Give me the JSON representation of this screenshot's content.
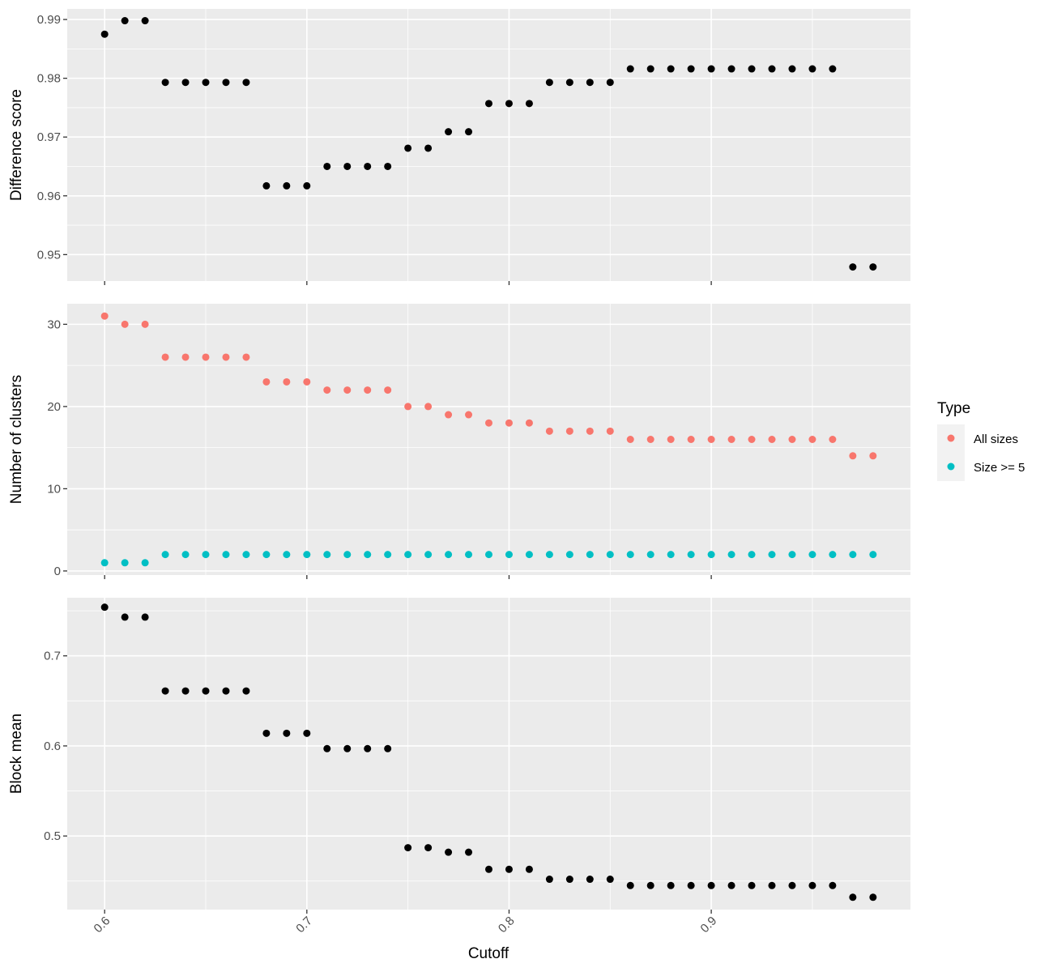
{
  "chart_data": [
    {
      "type": "scatter",
      "panel": "top",
      "ylabel": "Difference score",
      "xlim": [
        0.5815,
        0.9985
      ],
      "ylim": [
        0.9455,
        0.9918
      ],
      "y_ticks": [
        0.95,
        0.96,
        0.97,
        0.98,
        0.99
      ],
      "y_tick_labels": [
        "0.95",
        "0.96",
        "0.97",
        "0.98",
        "0.99"
      ],
      "show_x_tick_labels": false,
      "grid": true,
      "series": [
        {
          "color": "#000000",
          "x": [
            0.6,
            0.61,
            0.62,
            0.63,
            0.64,
            0.65,
            0.66,
            0.67,
            0.68,
            0.69,
            0.7,
            0.71,
            0.72,
            0.73,
            0.74,
            0.75,
            0.76,
            0.77,
            0.78,
            0.79,
            0.8,
            0.81,
            0.82,
            0.83,
            0.84,
            0.85,
            0.86,
            0.87,
            0.88,
            0.89,
            0.9,
            0.91,
            0.92,
            0.93,
            0.94,
            0.95,
            0.96,
            0.97,
            0.98
          ],
          "y": [
            0.9875,
            0.9898,
            0.9898,
            0.9793,
            0.9793,
            0.9793,
            0.9793,
            0.9793,
            0.9617,
            0.9617,
            0.9617,
            0.965,
            0.965,
            0.965,
            0.965,
            0.9681,
            0.9681,
            0.9709,
            0.9709,
            0.9757,
            0.9757,
            0.9757,
            0.9793,
            0.9793,
            0.9793,
            0.9793,
            0.9816,
            0.9816,
            0.9816,
            0.9816,
            0.9816,
            0.9816,
            0.9816,
            0.9816,
            0.9816,
            0.9816,
            0.9816,
            0.9479,
            0.9479
          ]
        }
      ]
    },
    {
      "type": "scatter",
      "panel": "middle",
      "ylabel": "Number of clusters",
      "xlim": [
        0.5815,
        0.9985
      ],
      "ylim": [
        -0.5,
        32.5
      ],
      "y_ticks": [
        0,
        10,
        20,
        30
      ],
      "y_tick_labels": [
        "0",
        "10",
        "20",
        "30"
      ],
      "show_x_tick_labels": false,
      "grid": true,
      "series": [
        {
          "name": "All sizes",
          "color": "#F8766D",
          "x": [
            0.6,
            0.61,
            0.62,
            0.63,
            0.64,
            0.65,
            0.66,
            0.67,
            0.68,
            0.69,
            0.7,
            0.71,
            0.72,
            0.73,
            0.74,
            0.75,
            0.76,
            0.77,
            0.78,
            0.79,
            0.8,
            0.81,
            0.82,
            0.83,
            0.84,
            0.85,
            0.86,
            0.87,
            0.88,
            0.89,
            0.9,
            0.91,
            0.92,
            0.93,
            0.94,
            0.95,
            0.96,
            0.97,
            0.98
          ],
          "y": [
            31,
            30,
            30,
            26,
            26,
            26,
            26,
            26,
            23,
            23,
            23,
            22,
            22,
            22,
            22,
            20,
            20,
            19,
            19,
            18,
            18,
            18,
            17,
            17,
            17,
            17,
            16,
            16,
            16,
            16,
            16,
            16,
            16,
            16,
            16,
            16,
            16,
            14,
            14
          ]
        },
        {
          "name": "Size >= 5",
          "color": "#00BFC4",
          "x": [
            0.6,
            0.61,
            0.62,
            0.63,
            0.64,
            0.65,
            0.66,
            0.67,
            0.68,
            0.69,
            0.7,
            0.71,
            0.72,
            0.73,
            0.74,
            0.75,
            0.76,
            0.77,
            0.78,
            0.79,
            0.8,
            0.81,
            0.82,
            0.83,
            0.84,
            0.85,
            0.86,
            0.87,
            0.88,
            0.89,
            0.9,
            0.91,
            0.92,
            0.93,
            0.94,
            0.95,
            0.96,
            0.97,
            0.98
          ],
          "y": [
            1,
            1,
            1,
            2,
            2,
            2,
            2,
            2,
            2,
            2,
            2,
            2,
            2,
            2,
            2,
            2,
            2,
            2,
            2,
            2,
            2,
            2,
            2,
            2,
            2,
            2,
            2,
            2,
            2,
            2,
            2,
            2,
            2,
            2,
            2,
            2,
            2,
            2,
            2
          ]
        }
      ]
    },
    {
      "type": "scatter",
      "panel": "bottom",
      "xlabel": "Cutoff",
      "ylabel": "Block mean",
      "xlim": [
        0.5815,
        0.9985
      ],
      "ylim": [
        0.4183,
        0.7645
      ],
      "y_ticks": [
        0.5,
        0.6,
        0.7
      ],
      "y_tick_labels": [
        "0.5",
        "0.6",
        "0.7"
      ],
      "x_ticks": [
        0.6,
        0.7,
        0.8,
        0.9
      ],
      "x_tick_labels": [
        "0.6",
        "0.7",
        "0.8",
        "0.9"
      ],
      "show_x_tick_labels": true,
      "grid": true,
      "series": [
        {
          "color": "#000000",
          "x": [
            0.6,
            0.61,
            0.62,
            0.63,
            0.64,
            0.65,
            0.66,
            0.67,
            0.68,
            0.69,
            0.7,
            0.71,
            0.72,
            0.73,
            0.74,
            0.75,
            0.76,
            0.77,
            0.78,
            0.79,
            0.8,
            0.81,
            0.82,
            0.83,
            0.84,
            0.85,
            0.86,
            0.87,
            0.88,
            0.89,
            0.9,
            0.91,
            0.92,
            0.93,
            0.94,
            0.95,
            0.96,
            0.97,
            0.98
          ],
          "y": [
            0.754,
            0.743,
            0.743,
            0.661,
            0.661,
            0.661,
            0.661,
            0.661,
            0.614,
            0.614,
            0.614,
            0.597,
            0.597,
            0.597,
            0.597,
            0.487,
            0.487,
            0.482,
            0.482,
            0.463,
            0.463,
            0.463,
            0.452,
            0.452,
            0.452,
            0.452,
            0.445,
            0.445,
            0.445,
            0.445,
            0.445,
            0.445,
            0.445,
            0.445,
            0.445,
            0.445,
            0.445,
            0.432,
            0.432
          ]
        }
      ]
    }
  ],
  "legend": {
    "title": "Type",
    "position": "right",
    "items": [
      {
        "label": "All sizes",
        "color": "#F8766D"
      },
      {
        "label": "Size >= 5",
        "color": "#00BFC4"
      }
    ]
  },
  "colors": {
    "panel_background": "#EBEBEB",
    "grid_major": "#FFFFFF",
    "tick_text": "#4D4D4D"
  }
}
